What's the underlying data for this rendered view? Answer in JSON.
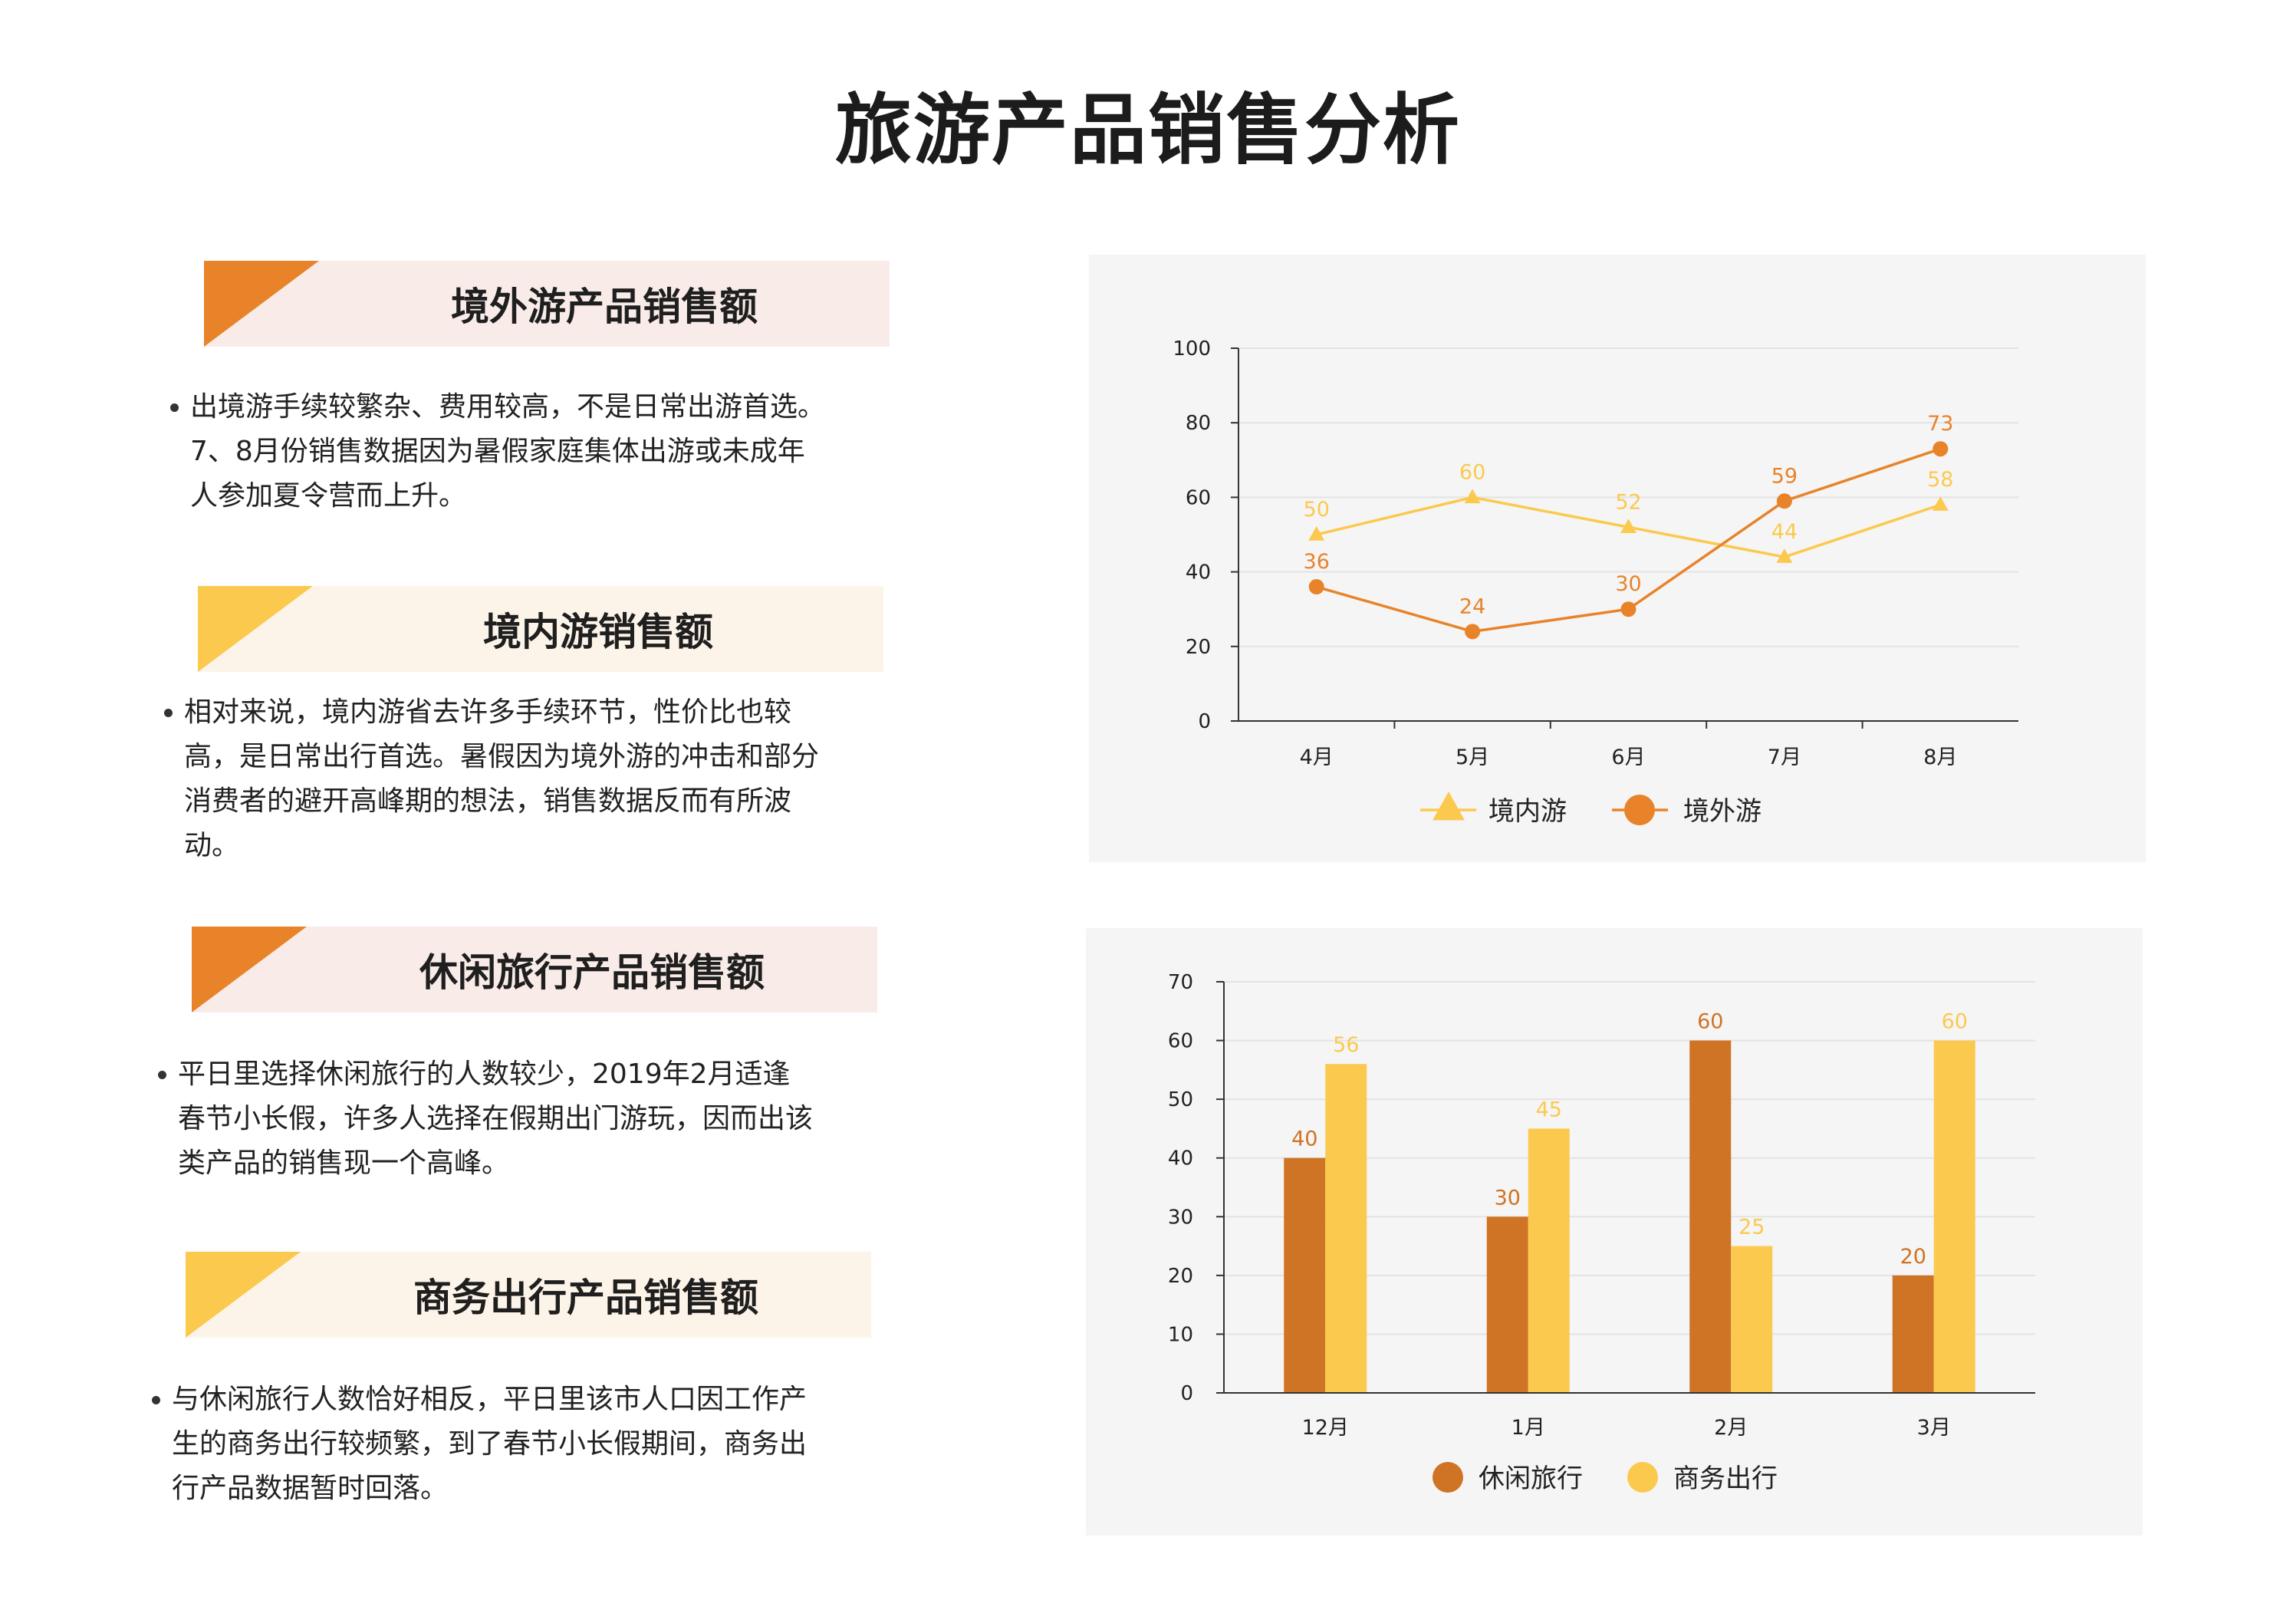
{
  "title": "旅游产品销售分析",
  "colors": {
    "dark_orange": "#e8832a",
    "bar_orange": "#cf7324",
    "light_yellow": "#fcc94f",
    "band_pink": "#f9ece8",
    "band_cream": "#fdf4e9",
    "panel_bg": "#f5f5f5"
  },
  "sections": [
    {
      "title": "境外游产品销售额",
      "accent": "dark_orange",
      "band": "band_pink",
      "text": "出境游手续较繁杂、费用较高，不是日常出游首选。7、8月份销售数据因为暑假家庭集体出游或未成年人参加夏令营而上升。"
    },
    {
      "title": "境内游销售额",
      "accent": "light_yellow",
      "band": "band_cream",
      "text": "相对来说，境内游省去许多手续环节，性价比也较高，是日常出行首选。暑假因为境外游的冲击和部分消费者的避开高峰期的想法，销售数据反而有所波动。"
    },
    {
      "title": "休闲旅行产品销售额",
      "accent": "dark_orange",
      "band": "band_pink",
      "text": "平日里选择休闲旅行的人数较少，2019年2月适逢春节小长假，许多人选择在假期出门游玩，因而出该类产品的销售现一个高峰。"
    },
    {
      "title": "商务出行产品销售额",
      "accent": "light_yellow",
      "band": "band_cream",
      "text": "与休闲旅行人数恰好相反，平日里该市人口因工作产生的商务出行较频繁，到了春节小长假期间，商务出行产品数据暂时回落。"
    }
  ],
  "chart_data": [
    {
      "type": "line",
      "categories": [
        "4月",
        "5月",
        "6月",
        "7月",
        "8月"
      ],
      "ylim": [
        0,
        100
      ],
      "yticks": [
        0,
        20,
        40,
        60,
        80,
        100
      ],
      "grid": true,
      "legend_position": "bottom",
      "series": [
        {
          "name": "境内游",
          "marker": "triangle",
          "color": "#fcc94f",
          "values": [
            50,
            60,
            52,
            44,
            58
          ]
        },
        {
          "name": "境外游",
          "marker": "circle",
          "color": "#e8832a",
          "values": [
            36,
            24,
            30,
            59,
            73
          ]
        }
      ]
    },
    {
      "type": "bar",
      "categories": [
        "12月",
        "1月",
        "2月",
        "3月"
      ],
      "ylim": [
        0,
        70
      ],
      "yticks": [
        0,
        10,
        20,
        30,
        40,
        50,
        60,
        70
      ],
      "grid": true,
      "legend_position": "bottom",
      "series": [
        {
          "name": "休闲旅行",
          "color": "#cf7324",
          "values": [
            40,
            30,
            60,
            20
          ]
        },
        {
          "name": "商务出行",
          "color": "#fcc94f",
          "values": [
            56,
            45,
            25,
            60
          ]
        }
      ]
    }
  ]
}
